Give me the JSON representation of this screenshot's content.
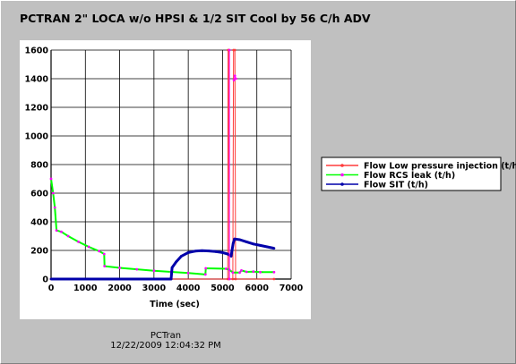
{
  "chart_data": {
    "type": "line",
    "title": "PCTRAN 2\" LOCA w/o HPSI & 1/2 SIT Cool by 56 C/h ADV",
    "xlabel": "Time (sec)",
    "ylabel": "",
    "xlim": [
      0,
      7000
    ],
    "ylim": [
      0,
      1600
    ],
    "x_ticks": [
      "0",
      "1000",
      "2000",
      "3000",
      "4000",
      "5000",
      "6000",
      "7000"
    ],
    "y_ticks": [
      "0",
      "200",
      "400",
      "600",
      "800",
      "1000",
      "1200",
      "1400",
      "1600"
    ],
    "grid": true,
    "legend_position": "right",
    "series": [
      {
        "name": "Flow Low pressure injection (t/h)",
        "color": "#ff3b3b",
        "marker_color": "#ff3b3b",
        "points": [
          [
            0,
            0
          ],
          [
            5150,
            0
          ],
          [
            5160,
            1600
          ],
          [
            5180,
            1600
          ],
          [
            5190,
            0
          ],
          [
            5300,
            0
          ],
          [
            5320,
            1600
          ],
          [
            5360,
            1600
          ],
          [
            5380,
            0
          ],
          [
            6500,
            0
          ]
        ]
      },
      {
        "name": "Flow RCS leak (t/h)",
        "color": "#00ff00",
        "marker_color": "#ff00ff",
        "points": [
          [
            0,
            700
          ],
          [
            60,
            600
          ],
          [
            110,
            500
          ],
          [
            160,
            340
          ],
          [
            300,
            330
          ],
          [
            500,
            300
          ],
          [
            800,
            260
          ],
          [
            1100,
            225
          ],
          [
            1400,
            195
          ],
          [
            1550,
            175
          ],
          [
            1560,
            90
          ],
          [
            2000,
            78
          ],
          [
            2500,
            68
          ],
          [
            3000,
            58
          ],
          [
            3500,
            50
          ],
          [
            4000,
            42
          ],
          [
            4500,
            32
          ],
          [
            4510,
            75
          ],
          [
            5100,
            72
          ],
          [
            5200,
            65
          ],
          [
            5300,
            45
          ],
          [
            5500,
            45
          ],
          [
            5550,
            60
          ],
          [
            5700,
            50
          ],
          [
            5900,
            52
          ],
          [
            6100,
            48
          ],
          [
            6500,
            48
          ]
        ]
      },
      {
        "name": "Flow SIT (t/h)",
        "color": "#0000aa",
        "marker_color": "#0000aa",
        "points": [
          [
            0,
            0
          ],
          [
            3500,
            0
          ],
          [
            3530,
            80
          ],
          [
            3650,
            120
          ],
          [
            3800,
            160
          ],
          [
            4000,
            185
          ],
          [
            4200,
            195
          ],
          [
            4400,
            198
          ],
          [
            4600,
            196
          ],
          [
            4800,
            192
          ],
          [
            5000,
            185
          ],
          [
            5150,
            175
          ],
          [
            5250,
            160
          ],
          [
            5310,
            250
          ],
          [
            5350,
            280
          ],
          [
            5500,
            275
          ],
          [
            5700,
            260
          ],
          [
            5900,
            245
          ],
          [
            6100,
            235
          ],
          [
            6300,
            225
          ],
          [
            6500,
            215
          ]
        ]
      },
      {
        "name": "",
        "color": "#ff00ff",
        "marker_color": "#ff00ff",
        "points": [
          [
            5200,
            0
          ],
          [
            5200,
            1600
          ]
        ]
      },
      {
        "name": "",
        "color": "#ff00ff",
        "marker_color": "#ff00ff",
        "points": [
          [
            5330,
            1390
          ],
          [
            5360,
            1420
          ],
          [
            5390,
            1400
          ]
        ]
      }
    ]
  },
  "footer": {
    "program": "PCTran",
    "timestamp": "12/22/2009 12:04:32 PM"
  }
}
